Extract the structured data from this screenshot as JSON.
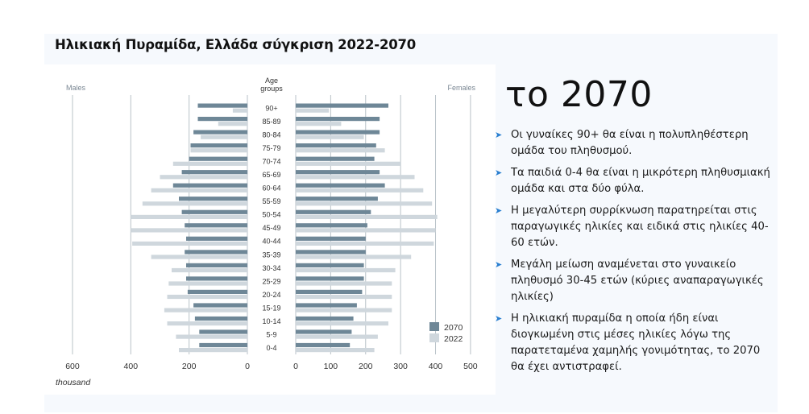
{
  "title": "Ηλικιακή Πυραμίδα, Ελλάδα σύγκριση 2022-2070",
  "heading": "το 2070",
  "bullets": [
    "Οι γυναίκες 90+ θα είναι η πολυπληθέστερη ομάδα του πληθυσμού.",
    "Τα παιδιά 0-4 θα είναι η μικρότερη πληθυσμιακή ομάδα και στα δύο φύλα.",
    "Η μεγαλύτερη συρρίκνωση παρατηρείται στις παραγωγικές ηλικίες και ειδικά στις ηλικίες 40-60 ετών.",
    "Μεγάλη μείωση αναμένεται στο γυναικείο πληθυσμό 30-45 ετών (κύριες αναπαραγωγικές ηλικίες)",
    "Η ηλικιακή πυραμίδα η οποία ήδη είναι διογκωμένη στις μέσες ηλικίες λόγω της παρατεταμένα χαμηλής γονιμότητας, το 2070 θα έχει αντιστραφεί."
  ],
  "colors": {
    "s2070": "#6e8797",
    "s2022": "#cfd7dd",
    "arrow": "#2a7fd0"
  },
  "chart_data": {
    "type": "bar",
    "orientation": "horizontal-pyramid",
    "left_label": "Males",
    "right_label": "Females",
    "center_label": "Age groups",
    "xunit": "thousand",
    "male_xlim": [
      600,
      0
    ],
    "female_xlim": [
      0,
      500
    ],
    "male_ticks": [
      600,
      400,
      200,
      0
    ],
    "female_ticks": [
      0,
      100,
      200,
      300,
      400,
      500
    ],
    "legend": [
      "2070",
      "2022"
    ],
    "legend_position": "bottom-right",
    "categories": [
      "90+",
      "85-89",
      "80-84",
      "75-79",
      "70-74",
      "65-69",
      "60-64",
      "55-59",
      "50-54",
      "45-49",
      "40-44",
      "35-39",
      "30-34",
      "25-29",
      "20-24",
      "15-19",
      "10-14",
      "5-9",
      "0-4"
    ],
    "series": [
      {
        "name": "2070",
        "side": "male",
        "values": [
          170,
          170,
          185,
          195,
          200,
          225,
          255,
          235,
          225,
          215,
          210,
          215,
          210,
          210,
          205,
          185,
          180,
          165,
          165
        ]
      },
      {
        "name": "2022",
        "side": "male",
        "values": [
          50,
          100,
          160,
          195,
          255,
          300,
          330,
          360,
          400,
          400,
          395,
          330,
          260,
          270,
          275,
          285,
          275,
          245,
          235
        ]
      },
      {
        "name": "2070",
        "side": "female",
        "values": [
          265,
          240,
          240,
          230,
          225,
          240,
          255,
          235,
          215,
          205,
          200,
          200,
          195,
          195,
          190,
          175,
          165,
          160,
          155
        ]
      },
      {
        "name": "2022",
        "side": "female",
        "values": [
          95,
          130,
          195,
          255,
          300,
          340,
          365,
          390,
          405,
          400,
          395,
          330,
          285,
          275,
          275,
          275,
          265,
          235,
          225
        ]
      }
    ]
  }
}
